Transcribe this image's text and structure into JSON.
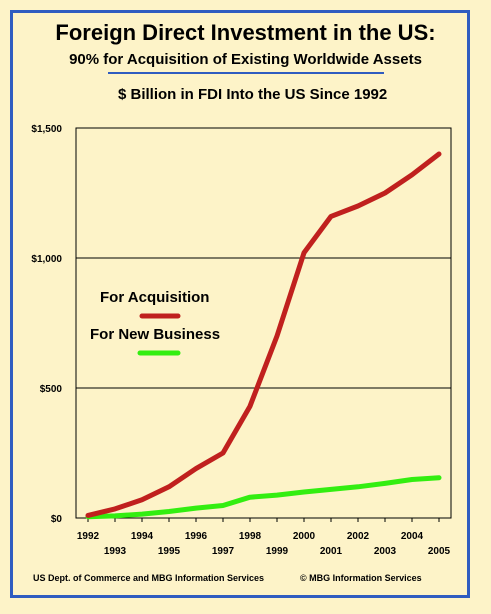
{
  "header": {
    "title": "Foreign Direct Investment in the US:",
    "subtitle": "90% for Acquisition of Existing Worldwide Assets"
  },
  "footer": {
    "source": "US Dept. of Commerce and MBG Information Services",
    "copyright": "© MBG Information Services"
  },
  "chart_data": {
    "type": "line",
    "title": "$ Billion in FDI Into the US Since 1992",
    "xlabel": "",
    "ylabel": "",
    "x": [
      1992,
      1993,
      1994,
      1995,
      1996,
      1997,
      1998,
      1999,
      2000,
      2001,
      2002,
      2003,
      2004,
      2005
    ],
    "x_tick_labels": [
      "1992",
      "1993",
      "1994",
      "1995",
      "1996",
      "1997",
      "1998",
      "1999",
      "2000",
      "2001",
      "2002",
      "2003",
      "2004",
      "2005"
    ],
    "ylim": [
      0,
      1500
    ],
    "y_ticks": [
      0,
      500,
      1000,
      1500
    ],
    "y_tick_labels": [
      "$0",
      "$500",
      "$1,000",
      "$1,500"
    ],
    "grid": "horizontal",
    "legend_placement": "middle-left",
    "series": [
      {
        "name": "For Acquisition",
        "color": "#c0201e",
        "values": [
          10,
          35,
          70,
          120,
          190,
          250,
          430,
          700,
          1020,
          1160,
          1200,
          1250,
          1320,
          1400
        ]
      },
      {
        "name": "For New Business",
        "color": "#33ee11",
        "values": [
          5,
          8,
          15,
          25,
          38,
          48,
          80,
          88,
          100,
          110,
          120,
          133,
          148,
          155
        ]
      }
    ]
  }
}
